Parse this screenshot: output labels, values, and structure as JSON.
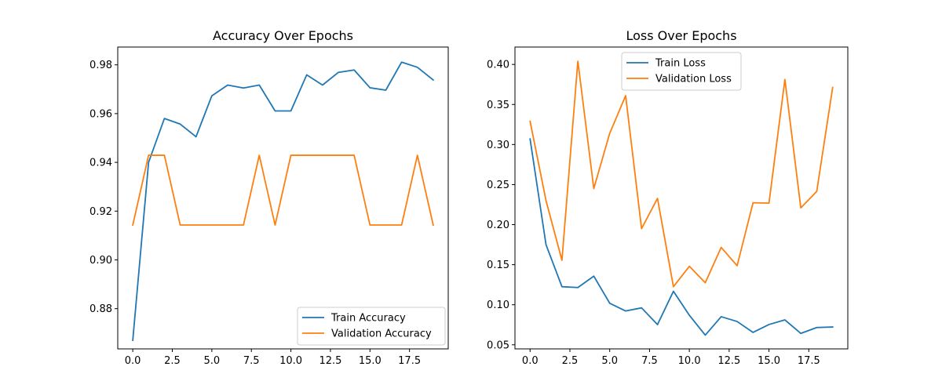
{
  "chart_data": [
    {
      "type": "line",
      "title": "Accuracy Over Epochs",
      "xlabel": "",
      "ylabel": "",
      "xlim": [
        -0.95,
        19.95
      ],
      "ylim": [
        0.8635,
        0.9873
      ],
      "xticks": [
        0,
        2.5,
        5,
        7.5,
        10,
        12.5,
        15,
        17.5
      ],
      "xtick_labels": [
        "0.0",
        "2.5",
        "5.0",
        "7.5",
        "10.0",
        "12.5",
        "15.0",
        "17.5"
      ],
      "yticks": [
        0.88,
        0.9,
        0.92,
        0.94,
        0.96,
        0.98
      ],
      "ytick_labels": [
        "0.88",
        "0.90",
        "0.92",
        "0.94",
        "0.96",
        "0.98"
      ],
      "grid": false,
      "legend_position": "lower right",
      "x": [
        0,
        1,
        2,
        3,
        4,
        5,
        6,
        7,
        8,
        9,
        10,
        11,
        12,
        13,
        14,
        15,
        16,
        17,
        18,
        19
      ],
      "series": [
        {
          "name": "Train Accuracy",
          "color": "#1f77b4",
          "values": [
            0.867,
            0.94,
            0.958,
            0.9557,
            0.9505,
            0.9673,
            0.9717,
            0.9705,
            0.9717,
            0.9611,
            0.9611,
            0.9759,
            0.9717,
            0.9769,
            0.9779,
            0.9706,
            0.9696,
            0.9811,
            0.979,
            0.9738
          ]
        },
        {
          "name": "Validation Accuracy",
          "color": "#ff7f0e",
          "values": [
            0.9143,
            0.9429,
            0.9429,
            0.9143,
            0.9143,
            0.9143,
            0.9143,
            0.9143,
            0.9429,
            0.9143,
            0.9429,
            0.9429,
            0.9429,
            0.9429,
            0.9429,
            0.9143,
            0.9143,
            0.9143,
            0.9429,
            0.9143
          ]
        }
      ]
    },
    {
      "type": "line",
      "title": "Loss Over Epochs",
      "xlabel": "",
      "ylabel": "",
      "xlim": [
        -0.95,
        19.95
      ],
      "ylim": [
        0.0449,
        0.4217
      ],
      "xticks": [
        0,
        2.5,
        5,
        7.5,
        10,
        12.5,
        15,
        17.5
      ],
      "xtick_labels": [
        "0.0",
        "2.5",
        "5.0",
        "7.5",
        "10.0",
        "12.5",
        "15.0",
        "17.5"
      ],
      "yticks": [
        0.05,
        0.1,
        0.15,
        0.2,
        0.25,
        0.3,
        0.35,
        0.4
      ],
      "ytick_labels": [
        "0.05",
        "0.10",
        "0.15",
        "0.20",
        "0.25",
        "0.30",
        "0.35",
        "0.40"
      ],
      "grid": false,
      "legend_position": "upper center",
      "x": [
        0,
        1,
        2,
        3,
        4,
        5,
        6,
        7,
        8,
        9,
        10,
        11,
        12,
        13,
        14,
        15,
        16,
        17,
        18,
        19
      ],
      "series": [
        {
          "name": "Train Loss",
          "color": "#1f77b4",
          "values": [
            0.307,
            0.175,
            0.1225,
            0.1215,
            0.1357,
            0.1019,
            0.0922,
            0.0961,
            0.0752,
            0.1168,
            0.0869,
            0.0621,
            0.0851,
            0.0791,
            0.0655,
            0.0753,
            0.0811,
            0.0642,
            0.0716,
            0.0722
          ]
        },
        {
          "name": "Validation Loss",
          "color": "#ff7f0e",
          "values": [
            0.329,
            0.23,
            0.1555,
            0.404,
            0.245,
            0.314,
            0.361,
            0.195,
            0.2328,
            0.1225,
            0.148,
            0.1275,
            0.1716,
            0.1487,
            0.2273,
            0.2268,
            0.3812,
            0.2209,
            0.2415,
            0.3713
          ]
        }
      ]
    }
  ]
}
